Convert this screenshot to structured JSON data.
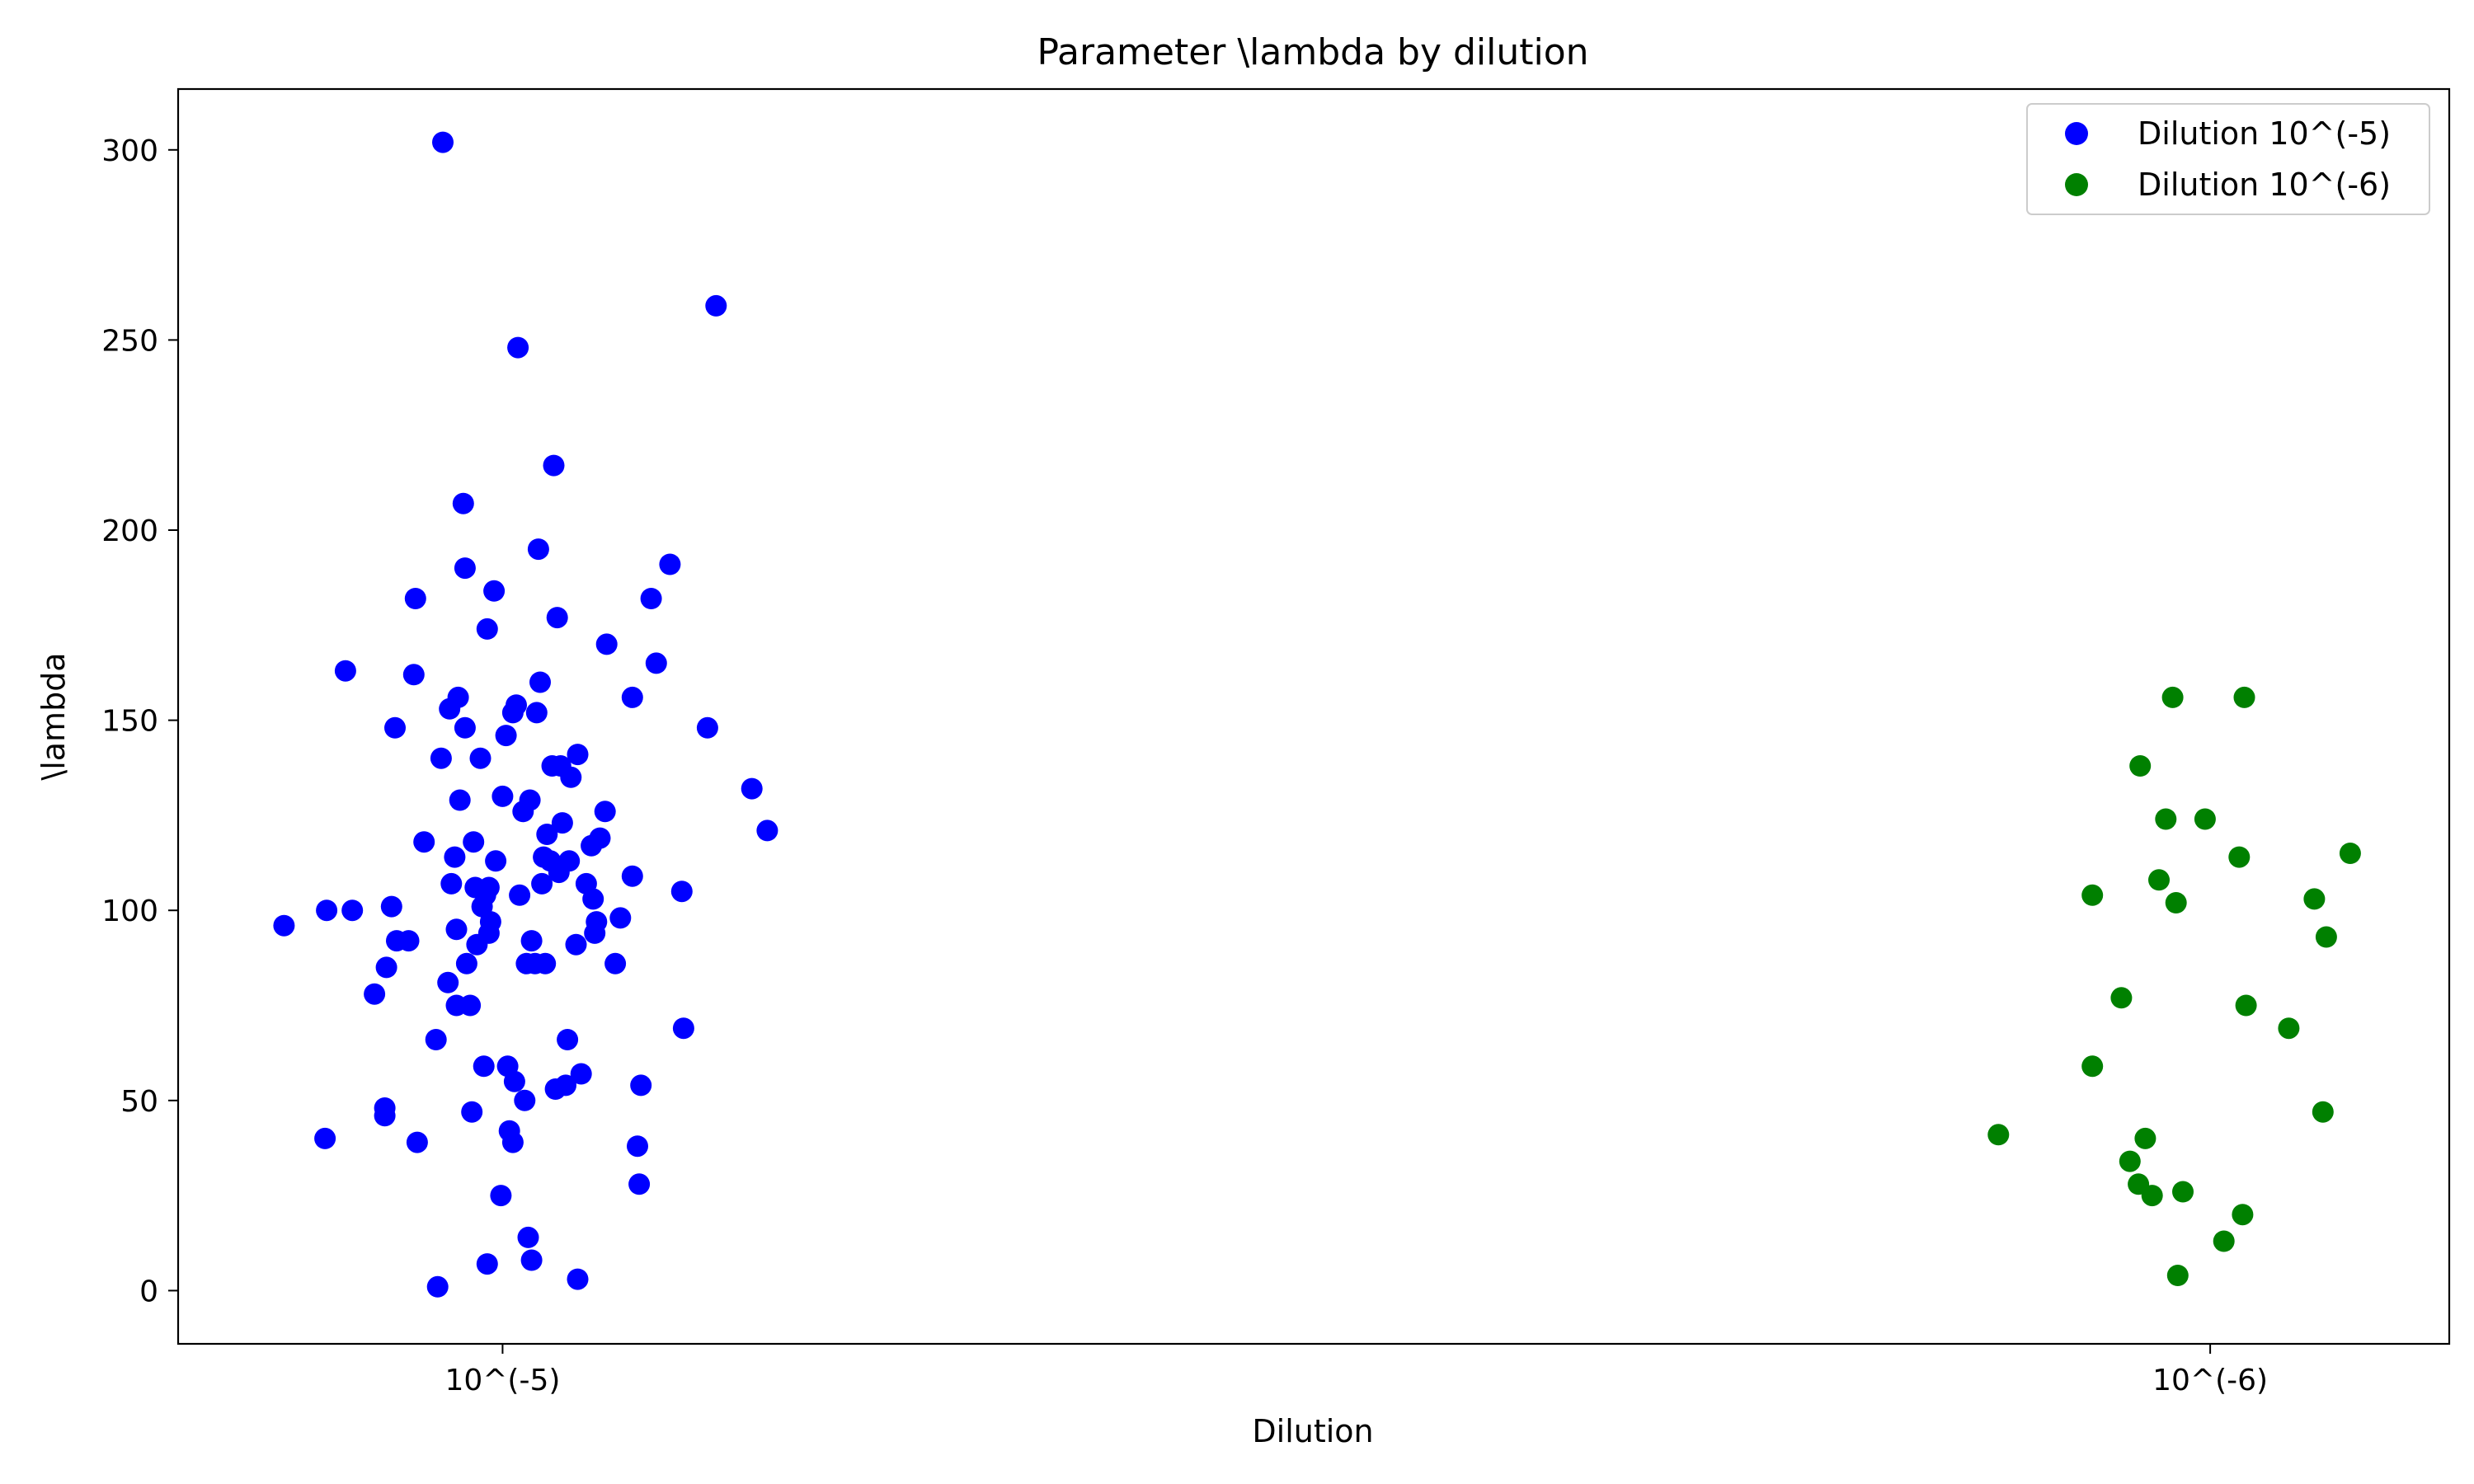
{
  "chart_data": {
    "type": "scatter",
    "title": "Parameter \\lambda by dilution",
    "xlabel": "Dilution",
    "ylabel": "\\lambda",
    "categories": [
      "10^(-5)",
      "10^(-6)"
    ],
    "xlim": [
      -0.19,
      1.14
    ],
    "ylim": [
      -14,
      316
    ],
    "yticks": [
      0,
      50,
      100,
      150,
      200,
      250,
      300
    ],
    "grid": false,
    "legend_position": "top-right",
    "series": [
      {
        "name": "Dilution 10^(-5)",
        "color": "#0000ff",
        "points": [
          [
            -0.128,
            96
          ],
          [
            -0.103,
            100
          ],
          [
            -0.104,
            40
          ],
          [
            -0.092,
            163
          ],
          [
            -0.088,
            100
          ],
          [
            -0.075,
            78
          ],
          [
            -0.069,
            48
          ],
          [
            -0.069,
            46
          ],
          [
            -0.068,
            85
          ],
          [
            -0.065,
            101
          ],
          [
            -0.063,
            148
          ],
          [
            -0.062,
            92
          ],
          [
            -0.055,
            92
          ],
          [
            -0.052,
            162
          ],
          [
            -0.051,
            182
          ],
          [
            -0.05,
            39
          ],
          [
            -0.046,
            118
          ],
          [
            -0.039,
            66
          ],
          [
            -0.038,
            1
          ],
          [
            -0.036,
            140
          ],
          [
            -0.035,
            302
          ],
          [
            -0.032,
            81
          ],
          [
            -0.031,
            153
          ],
          [
            -0.03,
            107
          ],
          [
            -0.028,
            114
          ],
          [
            -0.027,
            75
          ],
          [
            -0.027,
            95
          ],
          [
            -0.026,
            156
          ],
          [
            -0.025,
            129
          ],
          [
            -0.023,
            207
          ],
          [
            -0.022,
            190
          ],
          [
            -0.022,
            148
          ],
          [
            -0.021,
            86
          ],
          [
            -0.019,
            75
          ],
          [
            -0.018,
            47
          ],
          [
            -0.017,
            118
          ],
          [
            -0.016,
            106
          ],
          [
            -0.015,
            91
          ],
          [
            -0.013,
            140
          ],
          [
            -0.012,
            101
          ],
          [
            -0.011,
            59
          ],
          [
            -0.01,
            104
          ],
          [
            -0.009,
            174
          ],
          [
            -0.009,
            7
          ],
          [
            -0.008,
            106
          ],
          [
            -0.008,
            94
          ],
          [
            -0.007,
            97
          ],
          [
            -0.005,
            184
          ],
          [
            -0.004,
            113
          ],
          [
            -0.001,
            25
          ],
          [
            0.0,
            130
          ],
          [
            0.002,
            146
          ],
          [
            0.003,
            59
          ],
          [
            0.004,
            42
          ],
          [
            0.006,
            152
          ],
          [
            0.006,
            39
          ],
          [
            0.007,
            55
          ],
          [
            0.008,
            154
          ],
          [
            0.009,
            248
          ],
          [
            0.01,
            104
          ],
          [
            0.012,
            126
          ],
          [
            0.013,
            50
          ],
          [
            0.014,
            86
          ],
          [
            0.015,
            14
          ],
          [
            0.016,
            129
          ],
          [
            0.017,
            8
          ],
          [
            0.017,
            92
          ],
          [
            0.019,
            86
          ],
          [
            0.02,
            152
          ],
          [
            0.021,
            195
          ],
          [
            0.022,
            160
          ],
          [
            0.023,
            107
          ],
          [
            0.024,
            114
          ],
          [
            0.025,
            86
          ],
          [
            0.026,
            120
          ],
          [
            0.028,
            113
          ],
          [
            0.029,
            138
          ],
          [
            0.03,
            217
          ],
          [
            0.031,
            53
          ],
          [
            0.032,
            177
          ],
          [
            0.033,
            110
          ],
          [
            0.034,
            138
          ],
          [
            0.035,
            123
          ],
          [
            0.037,
            54
          ],
          [
            0.038,
            66
          ],
          [
            0.039,
            113
          ],
          [
            0.04,
            135
          ],
          [
            0.043,
            91
          ],
          [
            0.044,
            141
          ],
          [
            0.044,
            3
          ],
          [
            0.046,
            57
          ],
          [
            0.049,
            107
          ],
          [
            0.052,
            117
          ],
          [
            0.053,
            103
          ],
          [
            0.054,
            94
          ],
          [
            0.055,
            97
          ],
          [
            0.057,
            119
          ],
          [
            0.06,
            126
          ],
          [
            0.061,
            170
          ],
          [
            0.066,
            86
          ],
          [
            0.069,
            98
          ],
          [
            0.076,
            109
          ],
          [
            0.076,
            156
          ],
          [
            0.079,
            38
          ],
          [
            0.08,
            28
          ],
          [
            0.081,
            54
          ],
          [
            0.087,
            182
          ],
          [
            0.09,
            165
          ],
          [
            0.098,
            191
          ],
          [
            0.105,
            105
          ],
          [
            0.106,
            69
          ],
          [
            0.12,
            148
          ],
          [
            0.125,
            259
          ],
          [
            0.146,
            132
          ],
          [
            0.155,
            121
          ]
        ]
      },
      {
        "name": "Dilution 10^(-6)",
        "color": "#008000",
        "points": [
          [
            0.876,
            41
          ],
          [
            0.931,
            104
          ],
          [
            0.931,
            59
          ],
          [
            0.948,
            77
          ],
          [
            0.953,
            34
          ],
          [
            0.958,
            28
          ],
          [
            0.959,
            138
          ],
          [
            0.962,
            40
          ],
          [
            0.966,
            25
          ],
          [
            0.97,
            108
          ],
          [
            0.974,
            124
          ],
          [
            0.978,
            156
          ],
          [
            0.98,
            102
          ],
          [
            0.981,
            4
          ],
          [
            0.984,
            26
          ],
          [
            0.997,
            124
          ],
          [
            1.008,
            13
          ],
          [
            1.017,
            114
          ],
          [
            1.019,
            20
          ],
          [
            1.02,
            156
          ],
          [
            1.021,
            75
          ],
          [
            1.046,
            69
          ],
          [
            1.061,
            103
          ],
          [
            1.066,
            47
          ],
          [
            1.068,
            93
          ],
          [
            1.082,
            115
          ]
        ]
      }
    ]
  }
}
